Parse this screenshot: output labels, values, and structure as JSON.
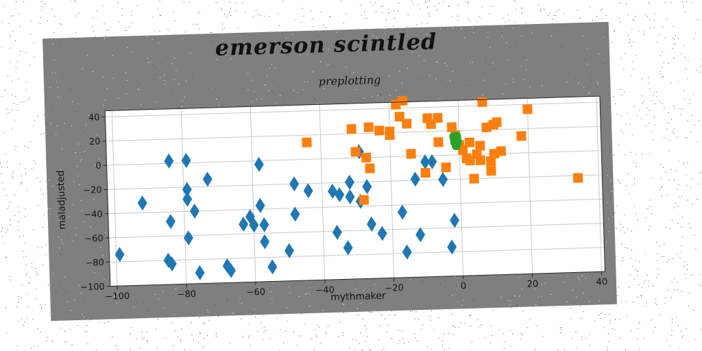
{
  "main_title": "emerson scintled",
  "chart_data": {
    "type": "scatter",
    "title": "preplotting",
    "xlabel": "mythmaker",
    "ylabel": "maladjusted",
    "xlim": [
      -102,
      41
    ],
    "ylim": [
      -100,
      45
    ],
    "xticks": [
      -100,
      -80,
      -60,
      -40,
      -20,
      0,
      20,
      40
    ],
    "yticks": [
      -100,
      -80,
      -60,
      -40,
      -20,
      0,
      20,
      40
    ],
    "grid": true,
    "series": [
      {
        "marker": "diamond",
        "color": "#1f77b4",
        "points": [
          [
            -84,
            2
          ],
          [
            -79,
            2
          ],
          [
            -73,
            -14
          ],
          [
            -79,
            -22
          ],
          [
            -79,
            -30
          ],
          [
            -77,
            -40
          ],
          [
            -92,
            -32
          ],
          [
            -84,
            -48
          ],
          [
            -79,
            -62
          ],
          [
            -99,
            -74
          ],
          [
            -85,
            -80
          ],
          [
            -84,
            -83
          ],
          [
            -76,
            -91
          ],
          [
            -68,
            -86
          ],
          [
            -67,
            -90
          ],
          [
            -61,
            -46
          ],
          [
            -63,
            -52
          ],
          [
            -60,
            -53
          ],
          [
            -58,
            -37
          ],
          [
            -57,
            -53
          ],
          [
            -57,
            -67
          ],
          [
            -55,
            -88
          ],
          [
            -58,
            -3
          ],
          [
            -50,
            -75
          ],
          [
            -48,
            -20
          ],
          [
            -48,
            -45
          ],
          [
            -44,
            -26
          ],
          [
            -37,
            -27
          ],
          [
            -36,
            -61
          ],
          [
            -35,
            -30
          ],
          [
            -33,
            -74
          ],
          [
            -32,
            -20
          ],
          [
            -32,
            -32
          ],
          [
            -29,
            -36
          ],
          [
            -29,
            5
          ],
          [
            -27,
            -24
          ],
          [
            -26,
            -55
          ],
          [
            -23,
            -63
          ],
          [
            -17,
            -46
          ],
          [
            -16,
            -79
          ],
          [
            -13,
            -19
          ],
          [
            -12,
            -65
          ],
          [
            -10,
            -5
          ],
          [
            -8,
            -5
          ],
          [
            -5,
            -20
          ],
          [
            -3,
            -76
          ],
          [
            -2,
            -54
          ]
        ]
      },
      {
        "marker": "square",
        "color": "#ff7f0e",
        "points": [
          [
            -44,
            14
          ],
          [
            -31,
            24
          ],
          [
            -30,
            5
          ],
          [
            -28,
            -35
          ],
          [
            -27,
            0
          ],
          [
            -26,
            -9
          ],
          [
            -26,
            25
          ],
          [
            -23,
            22
          ],
          [
            -20,
            21
          ],
          [
            -20,
            18
          ],
          [
            -18,
            43
          ],
          [
            -17,
            33
          ],
          [
            -16,
            46
          ],
          [
            -15,
            27
          ],
          [
            -14,
            2
          ],
          [
            -10,
            -14
          ],
          [
            -9,
            31
          ],
          [
            -8,
            26
          ],
          [
            -6,
            31
          ],
          [
            -6,
            11
          ],
          [
            -4,
            -10
          ],
          [
            -2,
            23
          ],
          [
            -1,
            16
          ],
          [
            0,
            8
          ],
          [
            1,
            4
          ],
          [
            2,
            -3
          ],
          [
            3,
            -5
          ],
          [
            3,
            10
          ],
          [
            4,
            -20
          ],
          [
            5,
            0
          ],
          [
            6,
            7
          ],
          [
            6,
            -5
          ],
          [
            7,
            43
          ],
          [
            8,
            22
          ],
          [
            9,
            -14
          ],
          [
            9,
            -6
          ],
          [
            10,
            24
          ],
          [
            10,
            0
          ],
          [
            11,
            26
          ],
          [
            12,
            2
          ],
          [
            18,
            14
          ],
          [
            20,
            36
          ],
          [
            34,
            -22
          ]
        ]
      },
      {
        "marker": "circle",
        "color": "#2ca02c",
        "points": [
          [
            -1.8,
            15
          ],
          [
            -1,
            15
          ],
          [
            -0.4,
            15
          ],
          [
            -1.6,
            11
          ],
          [
            -0.8,
            11
          ],
          [
            -0.2,
            11
          ],
          [
            -1.2,
            8
          ],
          [
            -0.6,
            8
          ],
          [
            -1.3,
            13
          ],
          [
            -0.6,
            13
          ]
        ]
      }
    ]
  }
}
